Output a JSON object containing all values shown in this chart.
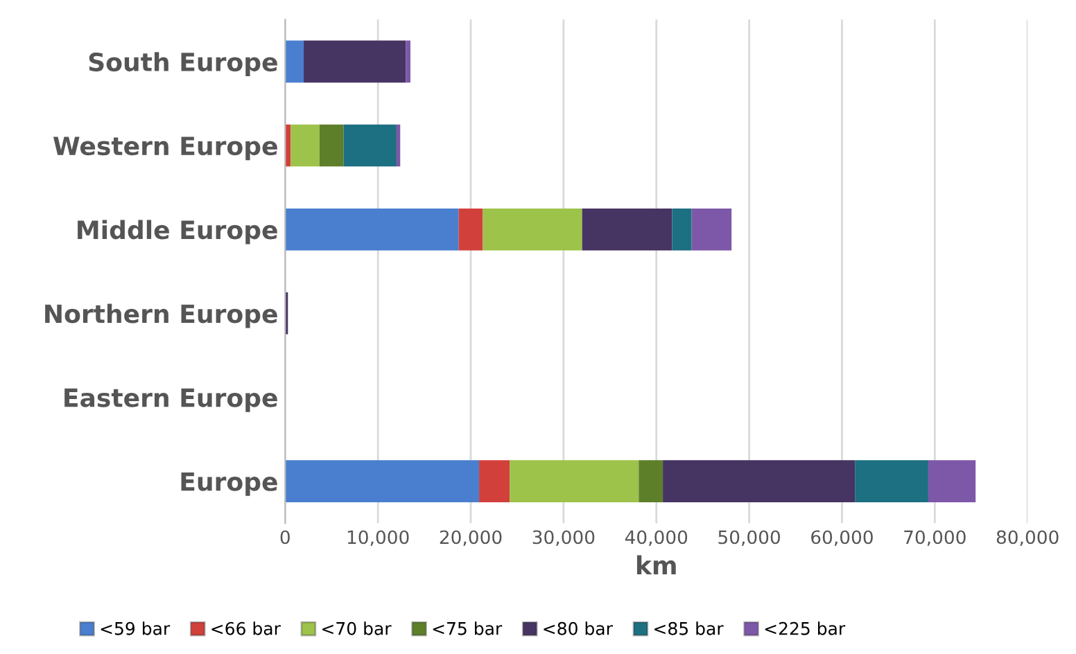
{
  "chart_data": {
    "type": "bar",
    "orientation": "horizontal",
    "stacked": true,
    "categories": [
      "South Europe",
      "Western Europe",
      "Middle Europe",
      "Northern Europe",
      "Eastern Europe",
      "Europe"
    ],
    "series": [
      {
        "name": "<59 bar",
        "color": "#4a7fcf",
        "values": [
          2000,
          0,
          18700,
          0,
          0,
          20900
        ]
      },
      {
        "name": "<66 bar",
        "color": "#d2403c",
        "values": [
          0,
          600,
          2600,
          0,
          0,
          3300
        ]
      },
      {
        "name": "<70 bar",
        "color": "#9dc34a",
        "values": [
          0,
          3100,
          10700,
          0,
          0,
          13900
        ]
      },
      {
        "name": "<75 bar",
        "color": "#5e7f2a",
        "values": [
          0,
          2600,
          0,
          0,
          0,
          2600
        ]
      },
      {
        "name": "<80 bar",
        "color": "#463462",
        "values": [
          11000,
          0,
          9700,
          300,
          0,
          20700
        ]
      },
      {
        "name": "<85 bar",
        "color": "#1d6f82",
        "values": [
          0,
          5700,
          2100,
          0,
          0,
          7900
        ]
      },
      {
        "name": "<225 bar",
        "color": "#7e58a8",
        "values": [
          500,
          400,
          4300,
          0,
          0,
          5100
        ]
      }
    ],
    "xlabel": "km",
    "xlim": [
      0,
      80000
    ],
    "xticks": [
      {
        "value": 0,
        "label": "0"
      },
      {
        "value": 10000,
        "label": "10,000"
      },
      {
        "value": 20000,
        "label": "20,000"
      },
      {
        "value": 30000,
        "label": "30,000"
      },
      {
        "value": 40000,
        "label": "40,000"
      },
      {
        "value": 50000,
        "label": "50,000"
      },
      {
        "value": 60000,
        "label": "60,000"
      },
      {
        "value": 70000,
        "label": "70,000"
      },
      {
        "value": 80000,
        "label": "80,000"
      }
    ],
    "grid": "x",
    "legend": "bottom"
  }
}
